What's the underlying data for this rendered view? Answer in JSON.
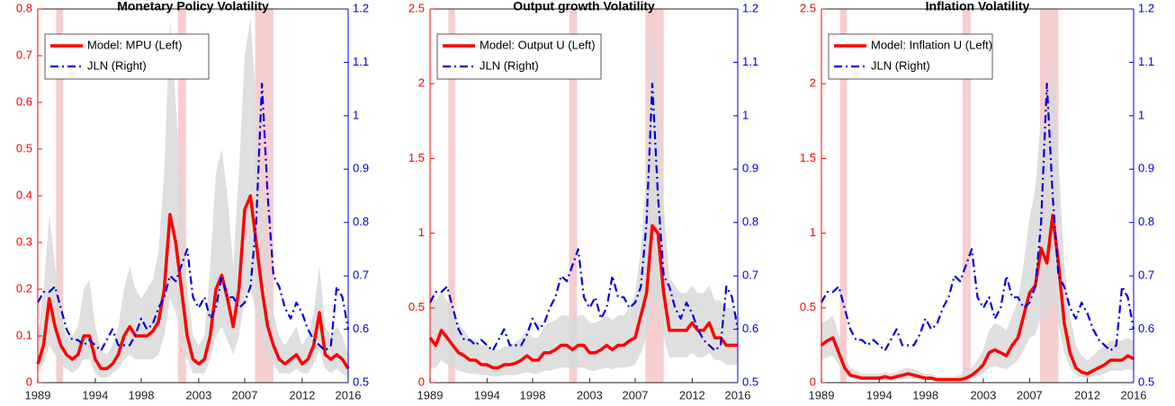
{
  "chart_data": [
    {
      "type": "line",
      "title": "Monetary Policy Volatility",
      "x": [
        1989,
        1989.5,
        1990,
        1990.5,
        1991,
        1991.5,
        1992,
        1992.5,
        1993,
        1993.5,
        1994,
        1994.5,
        1995,
        1995.5,
        1996,
        1996.5,
        1997,
        1997.5,
        1998,
        1998.5,
        1999,
        1999.5,
        2000,
        2000.5,
        2001,
        2001.5,
        2002,
        2002.5,
        2003,
        2003.5,
        2004,
        2004.5,
        2005,
        2005.5,
        2006,
        2006.5,
        2007,
        2007.5,
        2008,
        2008.5,
        2009,
        2009.5,
        2010,
        2010.5,
        2011,
        2011.5,
        2012,
        2012.5,
        2013,
        2013.5,
        2014,
        2014.5,
        2015,
        2015.5,
        2016
      ],
      "xlim": [
        1989,
        2016
      ],
      "xticks": [
        1989,
        1994,
        1998,
        2003,
        2007,
        2012,
        2016
      ],
      "ylim": [
        0,
        0.8
      ],
      "yticks": [
        0,
        0.1,
        0.2,
        0.3,
        0.4,
        0.5,
        0.6,
        0.7,
        0.8
      ],
      "y2lim": [
        0.5,
        1.2
      ],
      "y2ticks": [
        0.5,
        0.6,
        0.7,
        0.8,
        0.9,
        1,
        1.1,
        1.2
      ],
      "legend": "upper left",
      "recessions": [
        [
          1990.6,
          1991.2
        ],
        [
          2001.2,
          2001.9
        ],
        [
          2007.9,
          2009.5
        ]
      ],
      "recession_color": "#f6c6c6",
      "band": {
        "color": "#d9d9d9",
        "upper": [
          0.1,
          0.2,
          0.36,
          0.25,
          0.15,
          0.1,
          0.1,
          0.12,
          0.2,
          0.22,
          0.12,
          0.07,
          0.06,
          0.08,
          0.12,
          0.2,
          0.25,
          0.2,
          0.18,
          0.2,
          0.22,
          0.28,
          0.45,
          0.78,
          0.6,
          0.4,
          0.2,
          0.1,
          0.08,
          0.1,
          0.25,
          0.45,
          0.5,
          0.4,
          0.25,
          0.45,
          0.7,
          0.78,
          0.6,
          0.4,
          0.25,
          0.15,
          0.1,
          0.08,
          0.1,
          0.12,
          0.08,
          0.1,
          0.15,
          0.25,
          0.12,
          0.1,
          0.12,
          0.1,
          0.06
        ],
        "lower": [
          0.02,
          0.04,
          0.08,
          0.06,
          0.04,
          0.03,
          0.02,
          0.03,
          0.05,
          0.05,
          0.02,
          0.01,
          0.01,
          0.02,
          0.03,
          0.05,
          0.06,
          0.05,
          0.05,
          0.05,
          0.05,
          0.06,
          0.1,
          0.18,
          0.15,
          0.1,
          0.05,
          0.02,
          0.02,
          0.02,
          0.05,
          0.1,
          0.12,
          0.09,
          0.06,
          0.1,
          0.18,
          0.2,
          0.15,
          0.1,
          0.06,
          0.04,
          0.02,
          0.02,
          0.02,
          0.03,
          0.02,
          0.02,
          0.04,
          0.07,
          0.03,
          0.02,
          0.03,
          0.02,
          0.01
        ]
      },
      "series": [
        {
          "name": "Model: MPU (Left)",
          "color": "#ff0000",
          "style": "solid",
          "values": [
            0.04,
            0.08,
            0.18,
            0.12,
            0.08,
            0.06,
            0.05,
            0.06,
            0.1,
            0.1,
            0.05,
            0.03,
            0.03,
            0.04,
            0.06,
            0.1,
            0.12,
            0.1,
            0.1,
            0.1,
            0.11,
            0.13,
            0.2,
            0.36,
            0.3,
            0.2,
            0.1,
            0.05,
            0.04,
            0.05,
            0.1,
            0.2,
            0.23,
            0.18,
            0.12,
            0.2,
            0.37,
            0.4,
            0.3,
            0.2,
            0.12,
            0.08,
            0.05,
            0.04,
            0.05,
            0.06,
            0.04,
            0.05,
            0.08,
            0.15,
            0.06,
            0.05,
            0.06,
            0.05,
            0.03
          ]
        },
        {
          "name": "JLN (Right)",
          "color": "#0000dd",
          "style": "dash-dot",
          "axis": "y2",
          "values": [
            0.65,
            0.67,
            0.67,
            0.68,
            0.64,
            0.6,
            0.58,
            0.58,
            0.57,
            0.58,
            0.57,
            0.56,
            0.58,
            0.6,
            0.57,
            0.57,
            0.57,
            0.59,
            0.62,
            0.6,
            0.61,
            0.64,
            0.66,
            0.7,
            0.69,
            0.72,
            0.75,
            0.66,
            0.64,
            0.66,
            0.62,
            0.64,
            0.7,
            0.66,
            0.66,
            0.64,
            0.65,
            0.68,
            0.8,
            1.06,
            0.85,
            0.7,
            0.68,
            0.64,
            0.62,
            0.65,
            0.63,
            0.6,
            0.58,
            0.57,
            0.56,
            0.57,
            0.68,
            0.66,
            0.6
          ]
        }
      ]
    },
    {
      "type": "line",
      "title": "Output growth Volatility",
      "x": [
        1989,
        1989.5,
        1990,
        1990.5,
        1991,
        1991.5,
        1992,
        1992.5,
        1993,
        1993.5,
        1994,
        1994.5,
        1995,
        1995.5,
        1996,
        1996.5,
        1997,
        1997.5,
        1998,
        1998.5,
        1999,
        1999.5,
        2000,
        2000.5,
        2001,
        2001.5,
        2002,
        2002.5,
        2003,
        2003.5,
        2004,
        2004.5,
        2005,
        2005.5,
        2006,
        2006.5,
        2007,
        2007.5,
        2008,
        2008.5,
        2009,
        2009.5,
        2010,
        2010.5,
        2011,
        2011.5,
        2012,
        2012.5,
        2013,
        2013.5,
        2014,
        2014.5,
        2015,
        2015.5,
        2016
      ],
      "xlim": [
        1989,
        2016
      ],
      "xticks": [
        1989,
        1994,
        1998,
        2003,
        2007,
        2012,
        2016
      ],
      "ylim": [
        0,
        2.5
      ],
      "yticks": [
        0,
        0.5,
        1,
        1.5,
        2,
        2.5
      ],
      "y2lim": [
        0.5,
        1.2
      ],
      "y2ticks": [
        0.5,
        0.6,
        0.7,
        0.8,
        0.9,
        1,
        1.1,
        1.2
      ],
      "legend": "upper left",
      "recessions": [
        [
          1990.6,
          1991.2
        ],
        [
          2001.2,
          2001.9
        ],
        [
          2007.9,
          2009.5
        ]
      ],
      "recession_color": "#f6c6c6",
      "band": {
        "color": "#d9d9d9",
        "upper": [
          0.6,
          0.55,
          0.6,
          0.55,
          0.45,
          0.4,
          0.35,
          0.3,
          0.28,
          0.25,
          0.25,
          0.22,
          0.22,
          0.24,
          0.25,
          0.27,
          0.3,
          0.35,
          0.3,
          0.3,
          0.38,
          0.4,
          0.42,
          0.45,
          0.45,
          0.42,
          0.45,
          0.45,
          0.4,
          0.4,
          0.42,
          0.45,
          0.42,
          0.45,
          0.45,
          0.5,
          0.6,
          0.9,
          1.4,
          2.4,
          2.0,
          1.2,
          0.7,
          0.65,
          0.6,
          0.6,
          0.65,
          0.6,
          0.6,
          0.65,
          0.55,
          0.55,
          0.5,
          0.5,
          0.45
        ],
        "lower": [
          0.1,
          0.1,
          0.15,
          0.12,
          0.1,
          0.08,
          0.07,
          0.06,
          0.06,
          0.05,
          0.05,
          0.04,
          0.04,
          0.05,
          0.05,
          0.05,
          0.06,
          0.07,
          0.06,
          0.06,
          0.08,
          0.08,
          0.09,
          0.1,
          0.1,
          0.09,
          0.1,
          0.1,
          0.08,
          0.08,
          0.09,
          0.1,
          0.09,
          0.1,
          0.1,
          0.11,
          0.12,
          0.2,
          0.3,
          0.55,
          0.5,
          0.3,
          0.17,
          0.17,
          0.17,
          0.17,
          0.2,
          0.17,
          0.17,
          0.2,
          0.15,
          0.15,
          0.12,
          0.12,
          0.12
        ]
      },
      "series": [
        {
          "name": "Model: Output U (Left)",
          "color": "#ff0000",
          "style": "solid",
          "values": [
            0.3,
            0.25,
            0.35,
            0.3,
            0.25,
            0.2,
            0.18,
            0.15,
            0.15,
            0.12,
            0.12,
            0.1,
            0.1,
            0.12,
            0.12,
            0.13,
            0.15,
            0.18,
            0.15,
            0.15,
            0.2,
            0.2,
            0.22,
            0.25,
            0.25,
            0.22,
            0.25,
            0.25,
            0.2,
            0.2,
            0.22,
            0.25,
            0.22,
            0.25,
            0.25,
            0.28,
            0.3,
            0.45,
            0.6,
            1.05,
            1.0,
            0.6,
            0.35,
            0.35,
            0.35,
            0.35,
            0.4,
            0.35,
            0.35,
            0.4,
            0.3,
            0.3,
            0.25,
            0.25,
            0.25
          ]
        },
        {
          "name": "JLN (Right)",
          "color": "#0000dd",
          "style": "dash-dot",
          "axis": "y2",
          "values": [
            0.65,
            0.67,
            0.67,
            0.68,
            0.64,
            0.6,
            0.58,
            0.58,
            0.57,
            0.58,
            0.57,
            0.56,
            0.58,
            0.6,
            0.57,
            0.57,
            0.57,
            0.59,
            0.62,
            0.6,
            0.61,
            0.64,
            0.66,
            0.7,
            0.69,
            0.72,
            0.75,
            0.66,
            0.64,
            0.66,
            0.62,
            0.64,
            0.7,
            0.66,
            0.66,
            0.64,
            0.65,
            0.68,
            0.8,
            1.06,
            0.85,
            0.7,
            0.68,
            0.64,
            0.62,
            0.65,
            0.63,
            0.6,
            0.58,
            0.57,
            0.56,
            0.57,
            0.68,
            0.66,
            0.6
          ]
        }
      ]
    },
    {
      "type": "line",
      "title": "Inflation Volatility",
      "x": [
        1989,
        1989.5,
        1990,
        1990.5,
        1991,
        1991.5,
        1992,
        1992.5,
        1993,
        1993.5,
        1994,
        1994.5,
        1995,
        1995.5,
        1996,
        1996.5,
        1997,
        1997.5,
        1998,
        1998.5,
        1999,
        1999.5,
        2000,
        2000.5,
        2001,
        2001.5,
        2002,
        2002.5,
        2003,
        2003.5,
        2004,
        2004.5,
        2005,
        2005.5,
        2006,
        2006.5,
        2007,
        2007.5,
        2008,
        2008.5,
        2009,
        2009.5,
        2010,
        2010.5,
        2011,
        2011.5,
        2012,
        2012.5,
        2013,
        2013.5,
        2014,
        2014.5,
        2015,
        2015.5,
        2016
      ],
      "xlim": [
        1989,
        2016
      ],
      "xticks": [
        1989,
        1994,
        1998,
        2003,
        2007,
        2012,
        2016
      ],
      "ylim": [
        0,
        2.5
      ],
      "yticks": [
        0,
        0.5,
        1,
        1.5,
        2,
        2.5
      ],
      "y2lim": [
        0.5,
        1.2
      ],
      "y2ticks": [
        0.5,
        0.6,
        0.7,
        0.8,
        0.9,
        1,
        1.1,
        1.2
      ],
      "legend": "upper left",
      "recessions": [
        [
          1990.6,
          1991.2
        ],
        [
          2001.2,
          2001.9
        ],
        [
          2007.9,
          2009.5
        ]
      ],
      "recession_color": "#f6c6c6",
      "band": {
        "color": "#d9d9d9",
        "upper": [
          0.4,
          0.42,
          0.45,
          0.32,
          0.18,
          0.1,
          0.08,
          0.06,
          0.06,
          0.06,
          0.06,
          0.07,
          0.06,
          0.07,
          0.09,
          0.1,
          0.09,
          0.07,
          0.06,
          0.06,
          0.04,
          0.04,
          0.04,
          0.04,
          0.05,
          0.07,
          0.1,
          0.15,
          0.22,
          0.35,
          0.4,
          0.38,
          0.35,
          0.45,
          0.55,
          0.8,
          1.1,
          1.3,
          1.8,
          1.6,
          2.2,
          1.5,
          0.8,
          0.45,
          0.25,
          0.18,
          0.15,
          0.18,
          0.22,
          0.25,
          0.28,
          0.28,
          0.28,
          0.3,
          0.28
        ],
        "lower": [
          0.15,
          0.17,
          0.18,
          0.12,
          0.06,
          0.03,
          0.02,
          0.015,
          0.015,
          0.015,
          0.015,
          0.02,
          0.015,
          0.02,
          0.025,
          0.03,
          0.025,
          0.02,
          0.015,
          0.015,
          0.01,
          0.01,
          0.01,
          0.01,
          0.01,
          0.015,
          0.025,
          0.04,
          0.06,
          0.1,
          0.11,
          0.1,
          0.09,
          0.12,
          0.15,
          0.22,
          0.3,
          0.32,
          0.45,
          0.4,
          0.55,
          0.4,
          0.2,
          0.1,
          0.05,
          0.035,
          0.03,
          0.04,
          0.05,
          0.06,
          0.08,
          0.08,
          0.08,
          0.09,
          0.08
        ]
      },
      "series": [
        {
          "name": "Model: Inflation U (Left)",
          "color": "#ff0000",
          "style": "solid",
          "values": [
            0.25,
            0.28,
            0.3,
            0.2,
            0.1,
            0.05,
            0.04,
            0.03,
            0.03,
            0.03,
            0.03,
            0.04,
            0.03,
            0.04,
            0.05,
            0.06,
            0.05,
            0.04,
            0.03,
            0.03,
            0.02,
            0.02,
            0.02,
            0.02,
            0.02,
            0.03,
            0.05,
            0.08,
            0.12,
            0.2,
            0.22,
            0.2,
            0.18,
            0.25,
            0.3,
            0.45,
            0.6,
            0.65,
            0.9,
            0.8,
            1.12,
            0.8,
            0.4,
            0.2,
            0.1,
            0.07,
            0.06,
            0.08,
            0.1,
            0.12,
            0.15,
            0.15,
            0.15,
            0.18,
            0.16
          ]
        },
        {
          "name": "JLN (Right)",
          "color": "#0000dd",
          "style": "dash-dot",
          "axis": "y2",
          "values": [
            0.65,
            0.67,
            0.67,
            0.68,
            0.64,
            0.6,
            0.58,
            0.58,
            0.57,
            0.58,
            0.57,
            0.56,
            0.58,
            0.6,
            0.57,
            0.57,
            0.57,
            0.59,
            0.62,
            0.6,
            0.61,
            0.64,
            0.66,
            0.7,
            0.69,
            0.72,
            0.75,
            0.66,
            0.64,
            0.66,
            0.62,
            0.64,
            0.7,
            0.66,
            0.66,
            0.64,
            0.65,
            0.68,
            0.8,
            1.06,
            0.85,
            0.7,
            0.68,
            0.64,
            0.62,
            0.65,
            0.63,
            0.6,
            0.58,
            0.57,
            0.56,
            0.57,
            0.68,
            0.66,
            0.6
          ]
        }
      ]
    }
  ]
}
